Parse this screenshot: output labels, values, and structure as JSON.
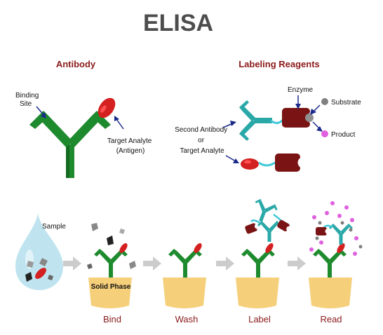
{
  "title": "ELISA",
  "sections": {
    "antibody": "Antibody",
    "labeling_reagents": "Labeling Reagents"
  },
  "antibody_labels": {
    "binding_site_line1": "Binding",
    "binding_site_line2": "Site",
    "target_line1": "Target Analyte",
    "target_line2": "(Antigen)"
  },
  "reagent_labels": {
    "enzyme": "Enzyme",
    "substrate": "Substrate",
    "product": "Product",
    "second_line1": "Second Antibody",
    "second_line2": "or",
    "second_line3": "Target Analyte"
  },
  "process": {
    "sample": "Sample",
    "solid_phase": "Solid Phase",
    "steps": [
      "Bind",
      "Wash",
      "Label",
      "Read"
    ]
  },
  "colors": {
    "title": "#4d4d4d",
    "heading": "#8b1a1a",
    "antibody_green": "#1e8a2e",
    "analyte_red": "#d42020",
    "teal": "#2aa8a8",
    "enzyme": "#7a1414",
    "substrate": "#808080",
    "product": "#e060e0",
    "solid_phase": "#f5cf7a",
    "arrow": "#cccccc",
    "drop": "#bfe4f0"
  }
}
